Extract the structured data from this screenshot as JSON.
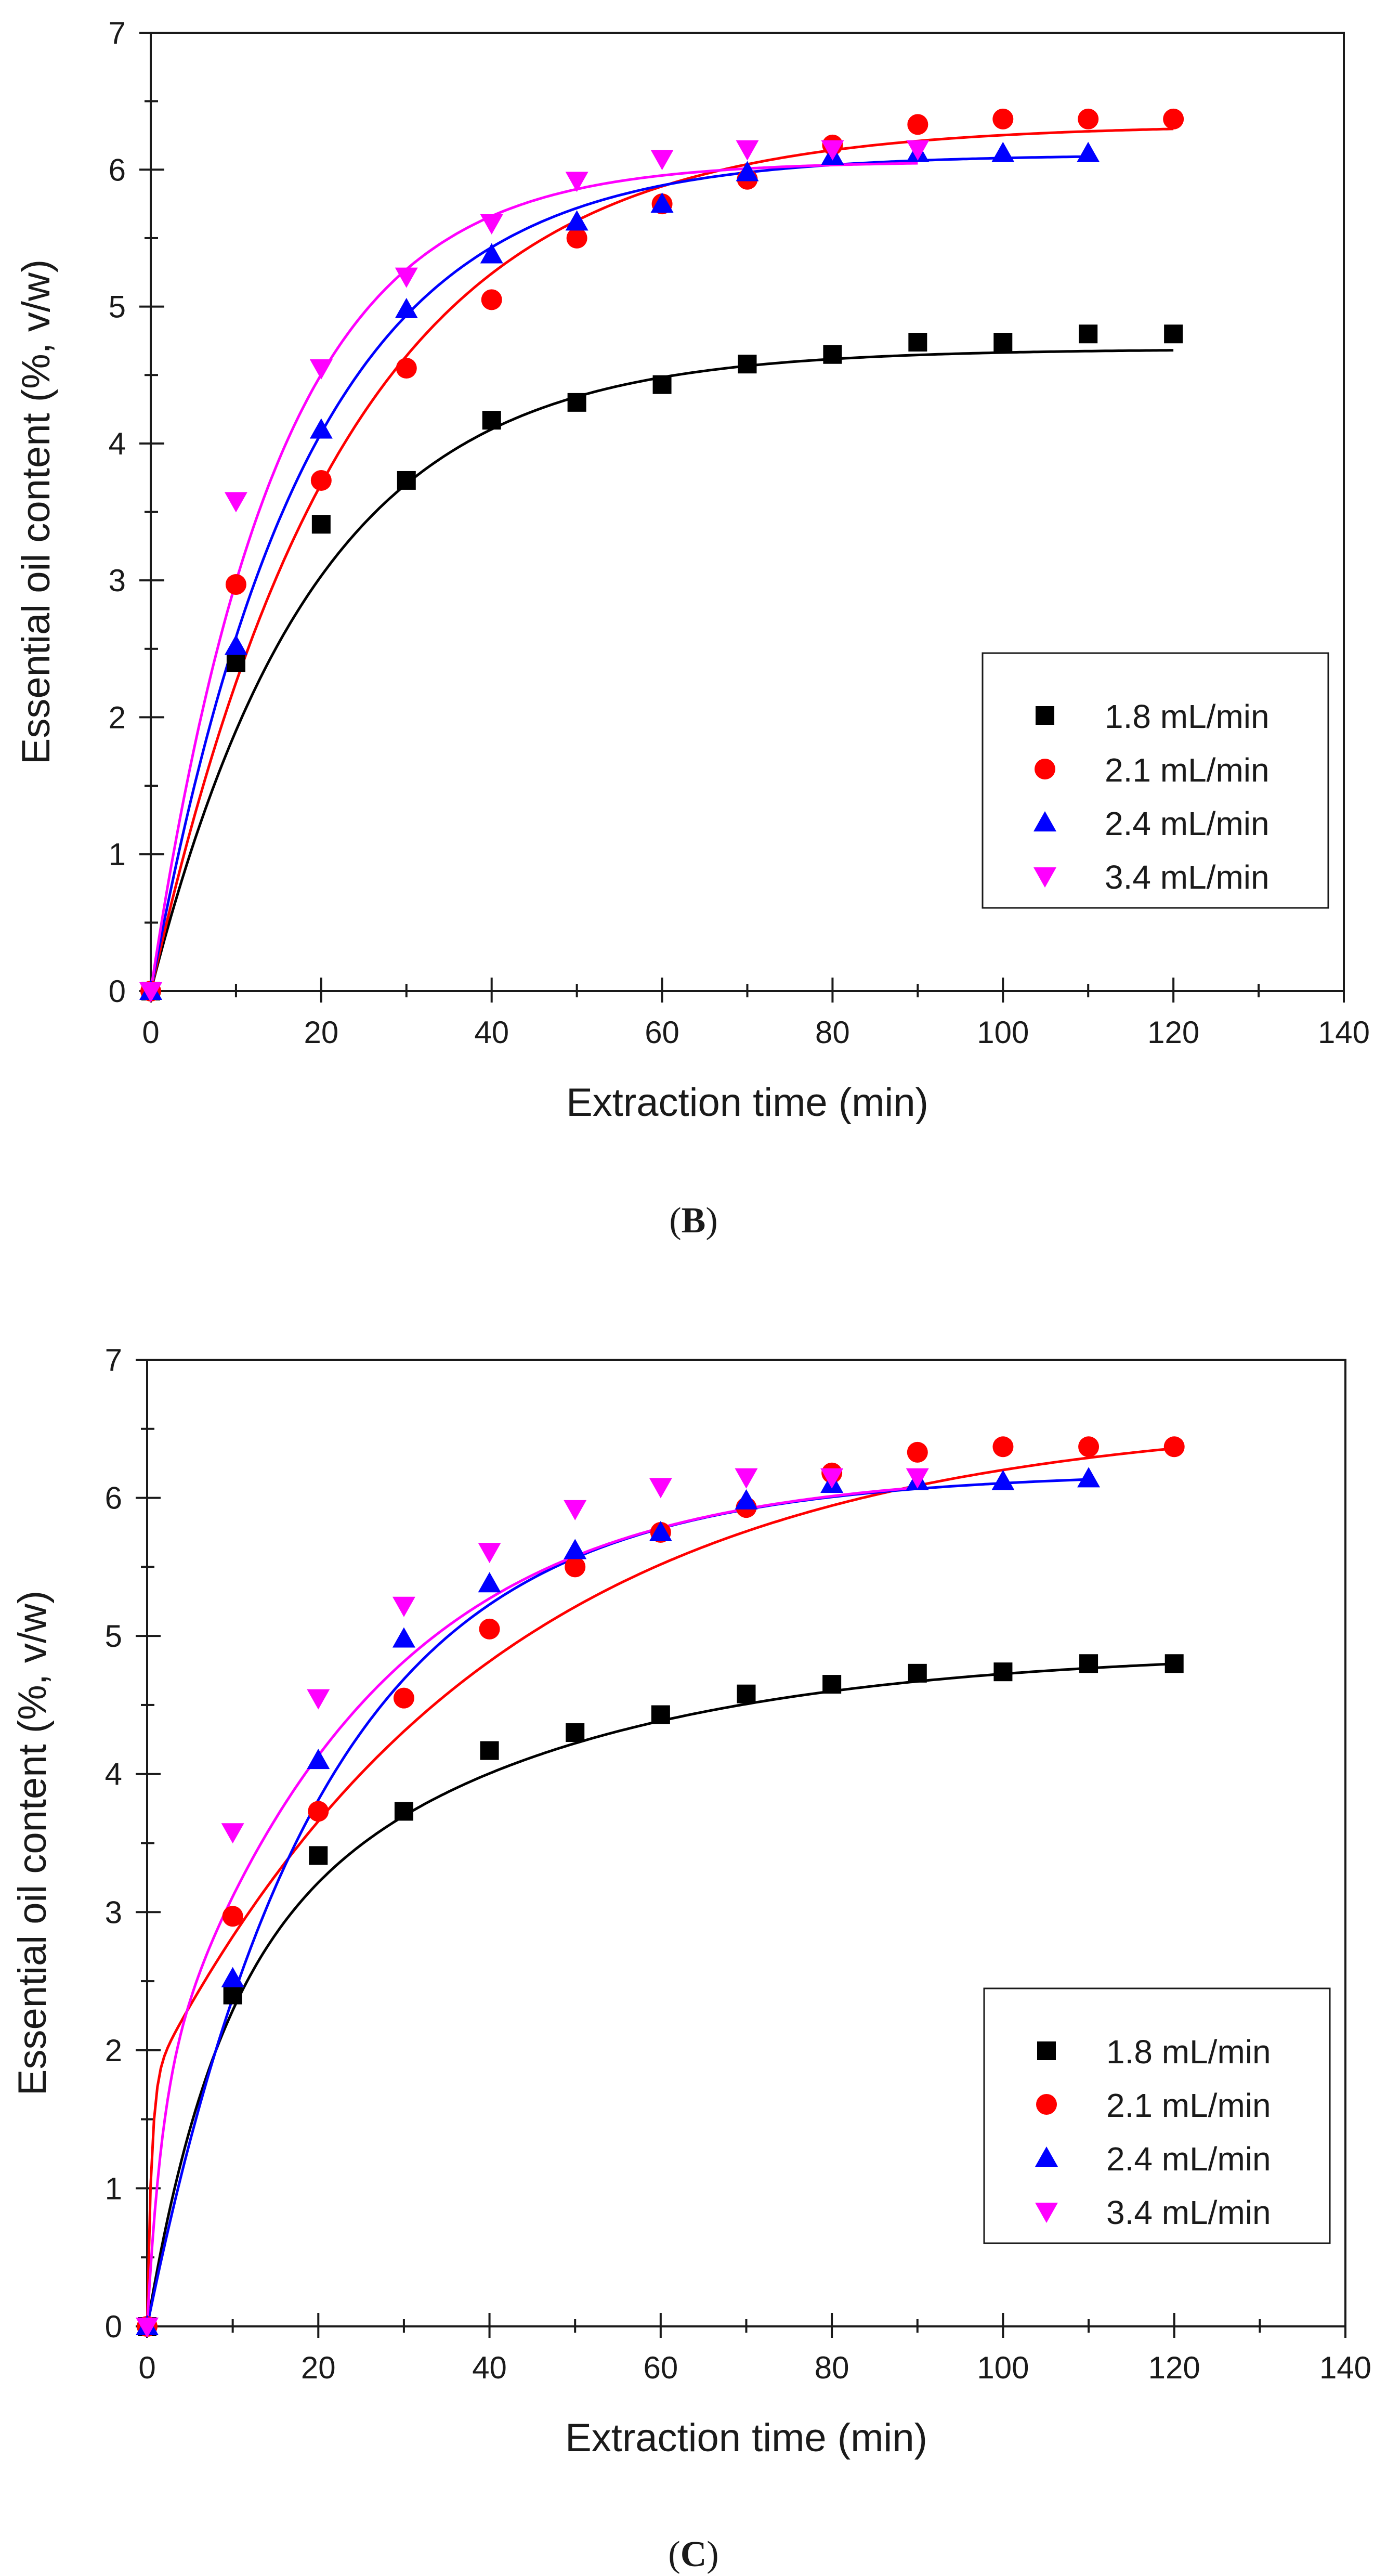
{
  "chart_data": [
    {
      "type": "scatter",
      "panel_label": "B",
      "title": "",
      "xlabel": "Extraction time (min)",
      "ylabel": "Essential oil content (%, v/w)",
      "xlim": [
        0,
        140
      ],
      "ylim": [
        0,
        7
      ],
      "xticks": [
        0,
        20,
        40,
        60,
        80,
        100,
        120,
        140
      ],
      "yticks": [
        0,
        1,
        2,
        3,
        4,
        5,
        6,
        7
      ],
      "legend_position": "bottom-right",
      "series": [
        {
          "name": "1.8 mL/min",
          "marker": "square",
          "color": "#000000",
          "x": [
            0,
            10,
            20,
            30,
            40,
            50,
            60,
            70,
            80,
            90,
            100,
            110,
            120
          ],
          "y": [
            0,
            2.4,
            3.41,
            3.73,
            4.17,
            4.3,
            4.43,
            4.58,
            4.65,
            4.74,
            4.74,
            4.8,
            4.8
          ],
          "fit": {
            "model": "first-order",
            "a": 4.69,
            "k": 0.052
          }
        },
        {
          "name": "2.1 mL/min",
          "marker": "circle",
          "color": "#ff0000",
          "x": [
            0,
            10,
            20,
            30,
            40,
            50,
            60,
            70,
            80,
            90,
            100,
            110,
            120
          ],
          "y": [
            0,
            2.97,
            3.73,
            4.55,
            5.05,
            5.5,
            5.75,
            5.93,
            6.18,
            6.33,
            6.37,
            6.37,
            6.37
          ],
          "fit": {
            "model": "first-order",
            "a": 6.33,
            "k": 0.044
          }
        },
        {
          "name": "2.4 mL/min",
          "marker": "triangle-up",
          "color": "#0000ff",
          "x": [
            0,
            10,
            20,
            30,
            40,
            50,
            60,
            70,
            80,
            90,
            100,
            110
          ],
          "y": [
            0,
            2.52,
            4.1,
            4.98,
            5.38,
            5.62,
            5.75,
            5.98,
            6.1,
            6.12,
            6.12,
            6.12
          ],
          "fit": {
            "model": "first-order",
            "a": 6.11,
            "k": 0.055
          }
        },
        {
          "name": "3.4 mL/min",
          "marker": "triangle-down",
          "color": "#ff00ff",
          "x": [
            0,
            10,
            20,
            30,
            40,
            50,
            60,
            70,
            80,
            90
          ],
          "y": [
            0,
            3.58,
            4.55,
            5.22,
            5.61,
            5.92,
            6.08,
            6.15,
            6.15,
            6.15
          ],
          "fit": {
            "model": "first-order",
            "a": 6.06,
            "k": 0.068
          }
        }
      ]
    },
    {
      "type": "scatter",
      "panel_label": "C",
      "title": "",
      "xlabel": "Extraction time (min)",
      "ylabel": "Essential oil content (%, v/w)",
      "xlim": [
        0,
        140
      ],
      "ylim": [
        0,
        7
      ],
      "xticks": [
        0,
        20,
        40,
        60,
        80,
        100,
        120,
        140
      ],
      "yticks": [
        0,
        1,
        2,
        3,
        4,
        5,
        6,
        7
      ],
      "legend_position": "bottom-right",
      "series": [
        {
          "name": "1.8 mL/min",
          "marker": "square",
          "color": "#000000",
          "x": [
            0,
            10,
            20,
            30,
            40,
            50,
            60,
            70,
            80,
            90,
            100,
            110,
            120
          ],
          "y": [
            0,
            2.4,
            3.41,
            3.73,
            4.17,
            4.3,
            4.43,
            4.58,
            4.65,
            4.73,
            4.74,
            4.8,
            4.8
          ],
          "fit": {
            "model": "biexponential",
            "a": 2.3,
            "k1": 0.13,
            "b": 2.6,
            "k2": 0.027
          }
        },
        {
          "name": "2.1 mL/min",
          "marker": "circle",
          "color": "#ff0000",
          "x": [
            0,
            10,
            20,
            30,
            40,
            50,
            60,
            70,
            80,
            90,
            100,
            110,
            120
          ],
          "y": [
            0,
            2.97,
            3.73,
            4.55,
            5.05,
            5.5,
            5.75,
            5.93,
            6.18,
            6.33,
            6.37,
            6.37,
            6.37
          ],
          "fit": {
            "model": "biexponential",
            "a": 1.75,
            "k1": 2.0,
            "b": 4.85,
            "k2": 0.025
          }
        },
        {
          "name": "2.4 mL/min",
          "marker": "triangle-up",
          "color": "#0000ff",
          "x": [
            0,
            10,
            20,
            30,
            40,
            50,
            60,
            70,
            80,
            90,
            100,
            110
          ],
          "y": [
            0,
            2.52,
            4.1,
            4.98,
            5.38,
            5.62,
            5.75,
            5.98,
            6.1,
            6.12,
            6.12,
            6.14
          ],
          "fit": {
            "model": "biexponential",
            "a": 4.7,
            "k1": 0.055,
            "b": 1.5,
            "k2": 0.03
          }
        },
        {
          "name": "3.4 mL/min",
          "marker": "triangle-down",
          "color": "#ff00ff",
          "x": [
            0,
            10,
            20,
            30,
            40,
            50,
            60,
            70,
            80,
            90
          ],
          "y": [
            0,
            3.58,
            4.55,
            5.22,
            5.61,
            5.92,
            6.08,
            6.15,
            6.15,
            6.15
          ],
          "fit": {
            "model": "biexponential",
            "a": 1.6,
            "k1": 0.6,
            "b": 4.6,
            "k2": 0.04
          }
        }
      ]
    }
  ]
}
